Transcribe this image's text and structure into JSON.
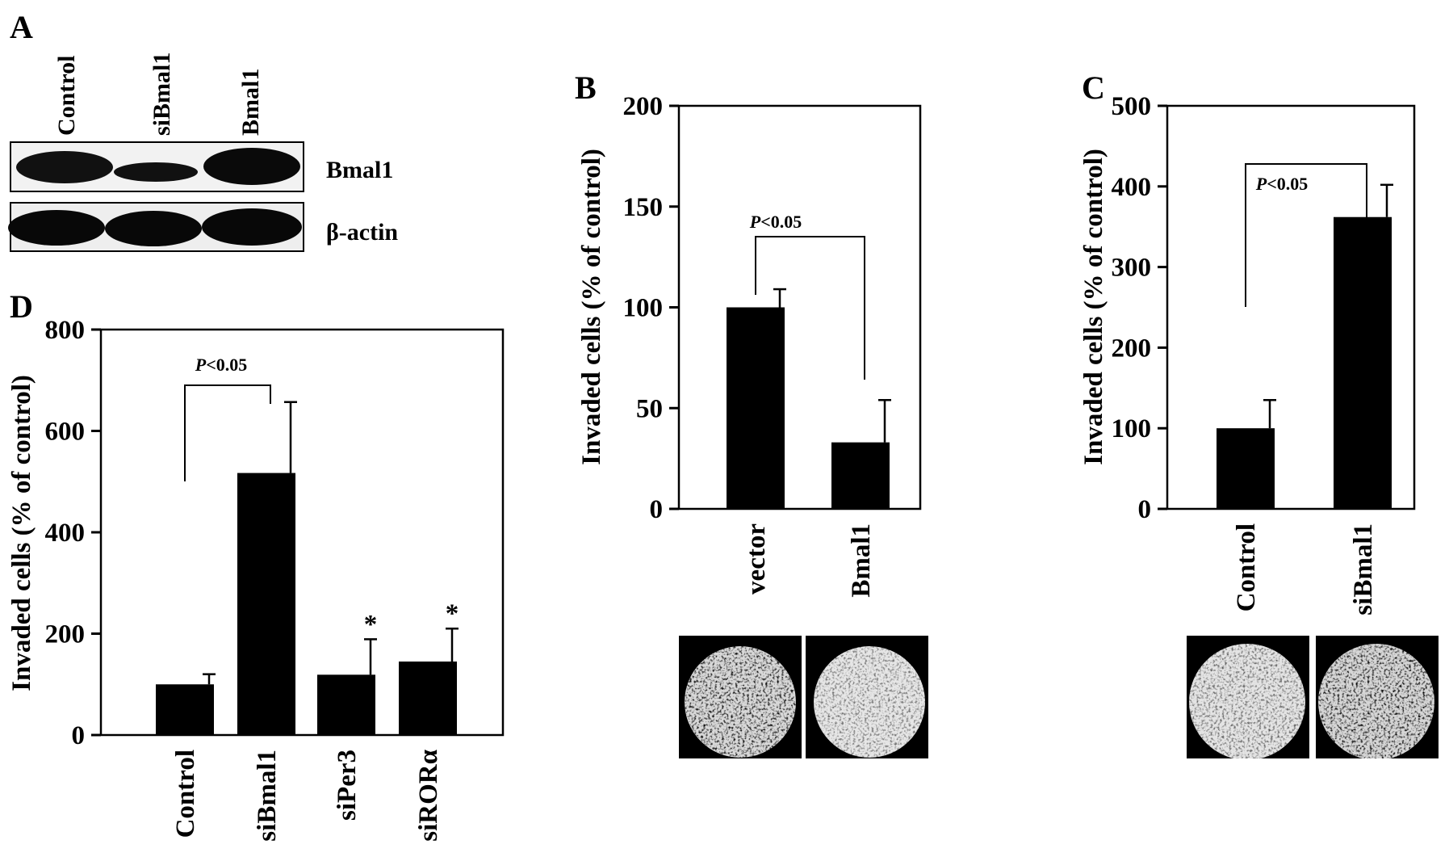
{
  "panel_a": {
    "letter": "A",
    "lanes": [
      "Control",
      "siBmal1",
      "Bmal1"
    ],
    "rows": [
      {
        "label": "Bmal1",
        "band_intensity": [
          0.85,
          0.55,
          1.0
        ]
      },
      {
        "label": "β-actin",
        "band_intensity": [
          1.0,
          1.0,
          1.0
        ]
      }
    ]
  },
  "chart_data": [
    {
      "panel": "B",
      "type": "bar",
      "ylabel": "Invaded cells (% of control)",
      "ylim": [
        0,
        200
      ],
      "yticks": [
        0,
        50,
        100,
        150,
        200
      ],
      "categories": [
        "vector",
        "Bmal1"
      ],
      "values": [
        100,
        33
      ],
      "errors": [
        9,
        21
      ],
      "annotation": {
        "text_p": "P",
        "text_rest": "<0.05",
        "between": [
          0,
          1
        ]
      },
      "images": [
        "vector",
        "Bmal1"
      ]
    },
    {
      "panel": "C",
      "type": "bar",
      "ylabel": "Invaded cells (% of control)",
      "ylim": [
        0,
        500
      ],
      "yticks": [
        0,
        100,
        200,
        300,
        400,
        500
      ],
      "categories": [
        "Control",
        "siBmal1"
      ],
      "values": [
        100,
        362
      ],
      "errors": [
        35,
        40
      ],
      "annotation": {
        "text_p": "P",
        "text_rest": "<0.05",
        "between": [
          0,
          1
        ]
      },
      "images": [
        "Control",
        "siBmal1"
      ]
    },
    {
      "panel": "D",
      "type": "bar",
      "ylabel": "Invaded cells (% of control)",
      "ylim": [
        0,
        800
      ],
      "yticks": [
        0,
        200,
        400,
        600,
        800
      ],
      "categories": [
        "Control",
        "siBmal1",
        "siPer3",
        "siRORα"
      ],
      "values": [
        100,
        517,
        119,
        145
      ],
      "errors": [
        20,
        140,
        70,
        65
      ],
      "markers": [
        "",
        "",
        "*",
        "*"
      ],
      "annotation": {
        "text_p": "P",
        "text_rest": "<0.05",
        "between": [
          0,
          1
        ]
      }
    }
  ],
  "colors": {
    "bar": "#000000",
    "background": "#ffffff"
  }
}
